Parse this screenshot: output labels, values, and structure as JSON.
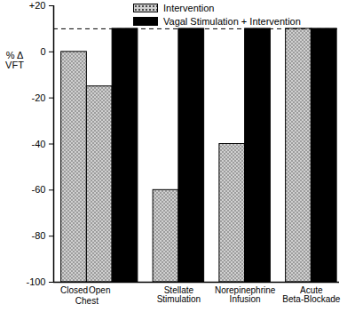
{
  "chart_data": {
    "type": "bar",
    "ylabel": "% Δ\nVFT",
    "categories": [
      "Closed",
      "Open",
      "Stellate\nStimulation",
      "Norepinephrine\nInfusion",
      "Acute\nBeta-Blockade"
    ],
    "series": [
      {
        "name": "Intervention",
        "color": "#d0d0d0",
        "values": [
          0,
          -15,
          -60,
          -40,
          10
        ]
      },
      {
        "name": "Vagal Stimulation + Intervention",
        "color": "#000000",
        "values": [
          null,
          10,
          10,
          10,
          10
        ]
      }
    ],
    "annotations": [
      {
        "text": "Chest"
      }
    ],
    "reference_line": {
      "value": 10,
      "line_style": "dashed"
    },
    "ylim": [
      -100,
      20
    ],
    "yticks": [
      -100,
      -80,
      -60,
      -40,
      -20,
      0,
      {
        "value": 20,
        "label": "+20"
      }
    ],
    "legend": "top"
  }
}
